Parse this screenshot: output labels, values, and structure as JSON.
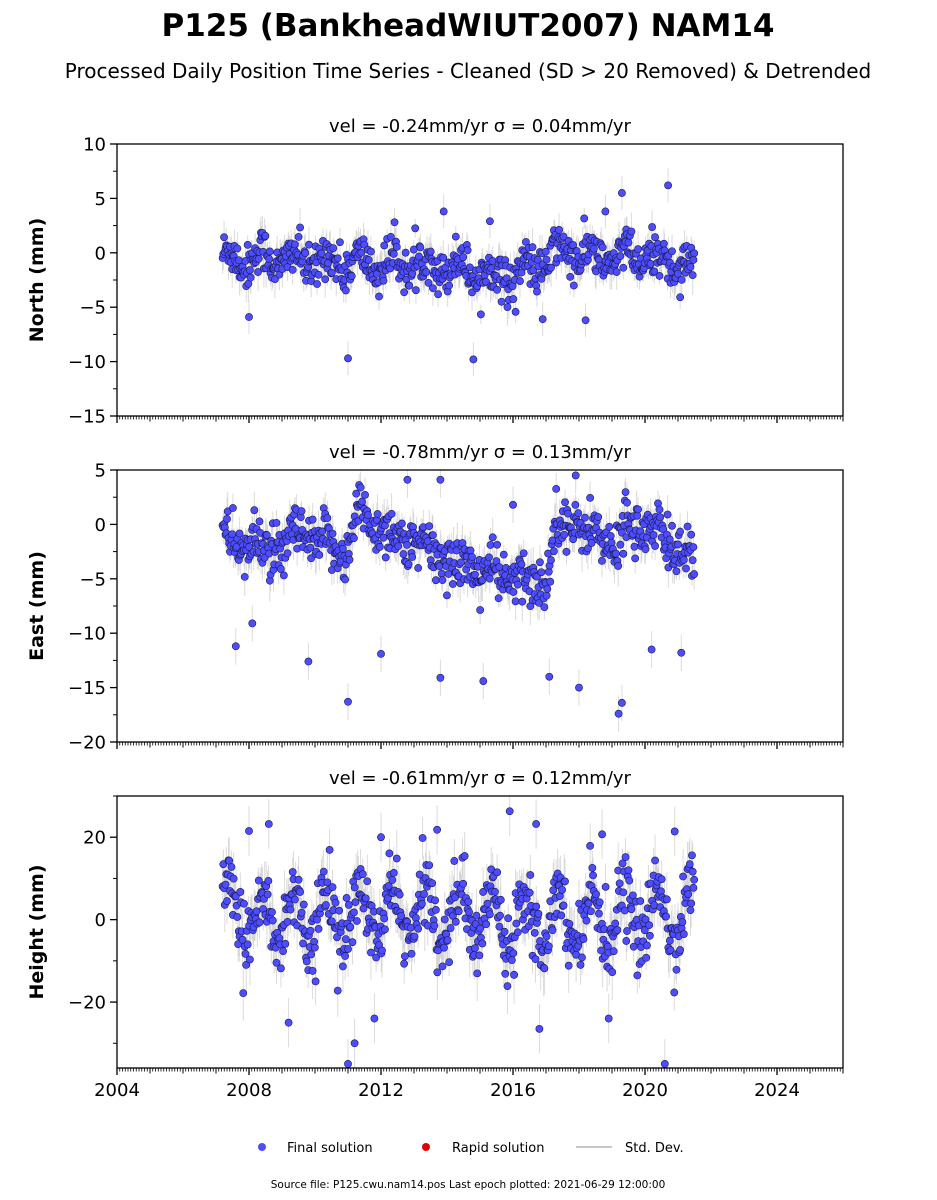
{
  "header": {
    "title": "P125 (BankheadWIUT2007) NAM14",
    "subtitle": "Processed Daily Position Time Series - Cleaned (SD > 20 Removed) & Detrended"
  },
  "footer": {
    "source": "Source file: P125.cwu.nam14.pos  Last epoch plotted: 2021-06-29 12:00:00"
  },
  "legend": {
    "items": [
      {
        "label": "Final solution",
        "marker": "dot",
        "color": "#4d4dff"
      },
      {
        "label": "Rapid solution",
        "marker": "dot",
        "color": "#e00000"
      },
      {
        "label": "Std. Dev.",
        "marker": "line",
        "color": "#c8c8c8"
      }
    ]
  },
  "colors": {
    "final": "#4d4dff",
    "final_edge": "#1a1a4d",
    "rapid": "#e00000",
    "stddev": "#bdbdbd"
  },
  "chart_data": [
    {
      "type": "scatter",
      "panel_title": "vel = -0.24mm/yr   σ = 0.04mm/yr",
      "ylabel": "North (mm)",
      "xlim": [
        2004,
        2026
      ],
      "ylim": [
        -15,
        10
      ],
      "x_ticks": [
        "2004",
        "2008",
        "2012",
        "2016",
        "2020",
        "2024"
      ],
      "y_ticks": [
        10,
        5,
        0,
        -5,
        -10,
        -15
      ],
      "y_tick_labels": [
        "10",
        "5",
        "0",
        "−5",
        "−10",
        "−15"
      ],
      "data_range": [
        2007.2,
        2021.49
      ],
      "trend": [
        [
          2007.2,
          -0.6
        ],
        [
          2008.5,
          -0.5
        ],
        [
          2010,
          -0.8
        ],
        [
          2011.5,
          -1.0
        ],
        [
          2013,
          -1.1
        ],
        [
          2014.5,
          -1.3
        ],
        [
          2015.5,
          -2.2
        ],
        [
          2016.5,
          -1.6
        ],
        [
          2017.5,
          0.2
        ],
        [
          2018.5,
          -0.6
        ],
        [
          2019.5,
          -0.3
        ],
        [
          2020.5,
          -0.7
        ],
        [
          2021.49,
          -1.1
        ]
      ],
      "seasonal_amp": 0.9,
      "noise": 1.0,
      "outliers": [
        [
          2011.0,
          -9.7
        ],
        [
          2014.8,
          -9.8
        ],
        [
          2020.7,
          6.2
        ],
        [
          2019.3,
          5.5
        ],
        [
          2013.9,
          3.8
        ],
        [
          2008.0,
          -5.9
        ],
        [
          2015.3,
          2.9
        ],
        [
          2018.8,
          3.8
        ],
        [
          2016.9,
          -6.1
        ],
        [
          2018.2,
          -6.2
        ]
      ],
      "sd_base": 1.3,
      "n_points": 640
    },
    {
      "type": "scatter",
      "panel_title": "vel = -0.78mm/yr   σ = 0.13mm/yr",
      "ylabel": "East (mm)",
      "xlim": [
        2004,
        2026
      ],
      "ylim": [
        -20,
        5
      ],
      "x_ticks": [
        "2004",
        "2008",
        "2012",
        "2016",
        "2020",
        "2024"
      ],
      "y_ticks": [
        5,
        0,
        -5,
        -10,
        -15,
        -20
      ],
      "y_tick_labels": [
        "5",
        "0",
        "−5",
        "−10",
        "−15",
        "−20"
      ],
      "data_range": [
        2007.2,
        2021.49
      ],
      "trend": [
        [
          2007.2,
          -1.5
        ],
        [
          2008.5,
          -2.2
        ],
        [
          2009.0,
          -2.8
        ],
        [
          2009.3,
          -1.0
        ],
        [
          2010.5,
          -2.0
        ],
        [
          2011.0,
          -2.5
        ],
        [
          2011.3,
          1.2
        ],
        [
          2012.5,
          -1.3
        ],
        [
          2014.0,
          -3.2
        ],
        [
          2015.5,
          -4.6
        ],
        [
          2016.6,
          -5.6
        ],
        [
          2017.1,
          -4.5
        ],
        [
          2017.3,
          0.5
        ],
        [
          2018.5,
          -0.8
        ],
        [
          2019.2,
          -2.5
        ],
        [
          2019.4,
          0.5
        ],
        [
          2020.5,
          -1.2
        ],
        [
          2021.49,
          -3.0
        ]
      ],
      "seasonal_amp": 0.5,
      "noise": 1.2,
      "outliers": [
        [
          2011.0,
          -16.3
        ],
        [
          2013.8,
          -14.1
        ],
        [
          2015.1,
          -14.4
        ],
        [
          2019.2,
          -17.4
        ],
        [
          2019.3,
          -16.4
        ],
        [
          2018.0,
          -15.0
        ],
        [
          2017.1,
          -14.0
        ],
        [
          2009.8,
          -12.6
        ],
        [
          2012.0,
          -11.9
        ],
        [
          2020.2,
          -11.5
        ],
        [
          2007.6,
          -11.2
        ],
        [
          2008.1,
          -9.1
        ],
        [
          2021.1,
          -11.8
        ],
        [
          2017.9,
          4.5
        ],
        [
          2013.8,
          4.1
        ],
        [
          2012.8,
          4.1
        ],
        [
          2016.0,
          1.8
        ]
      ],
      "sd_base": 1.4,
      "n_points": 640
    },
    {
      "type": "scatter",
      "panel_title": "vel = -0.61mm/yr   σ = 0.12mm/yr",
      "ylabel": "Height (mm)",
      "xlim": [
        2004,
        2026
      ],
      "ylim": [
        -36,
        30
      ],
      "x_ticks": [
        "2004",
        "2008",
        "2012",
        "2016",
        "2020",
        "2024"
      ],
      "y_ticks": [
        20,
        0,
        -20
      ],
      "y_tick_labels": [
        "20",
        "0",
        "−20"
      ],
      "data_range": [
        2007.2,
        2021.49
      ],
      "trend": [
        [
          2007.2,
          1.0
        ],
        [
          2010,
          0.5
        ],
        [
          2013,
          1.5
        ],
        [
          2016,
          0.5
        ],
        [
          2019,
          0.8
        ],
        [
          2021.49,
          1.5
        ]
      ],
      "seasonal_amp": 7.0,
      "noise": 4.0,
      "outliers": [
        [
          2011.0,
          -35.0
        ],
        [
          2020.6,
          -35.0
        ],
        [
          2011.2,
          -30.0
        ],
        [
          2008.6,
          23.2
        ],
        [
          2015.9,
          26.3
        ],
        [
          2016.7,
          23.2
        ],
        [
          2008.0,
          21.5
        ],
        [
          2012.0,
          20.0
        ],
        [
          2013.7,
          21.8
        ],
        [
          2018.7,
          20.7
        ],
        [
          2020.9,
          21.4
        ],
        [
          2016.8,
          -26.5
        ],
        [
          2018.9,
          -24.0
        ],
        [
          2009.2,
          -25.0
        ],
        [
          2011.8,
          -24.0
        ]
      ],
      "sd_base": 5.0,
      "n_points": 640
    }
  ]
}
